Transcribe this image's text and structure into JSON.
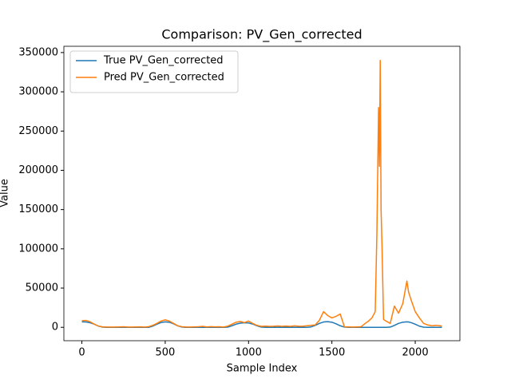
{
  "chart_data": {
    "type": "line",
    "title": "Comparison: PV_Gen_corrected",
    "xlabel": "Sample Index",
    "ylabel": "Value",
    "x": [
      0,
      25,
      50,
      75,
      100,
      125,
      150,
      175,
      200,
      225,
      250,
      275,
      300,
      325,
      350,
      375,
      400,
      425,
      450,
      475,
      500,
      525,
      550,
      575,
      600,
      625,
      650,
      675,
      700,
      725,
      750,
      775,
      800,
      825,
      850,
      875,
      900,
      925,
      950,
      975,
      1000,
      1025,
      1050,
      1075,
      1100,
      1125,
      1150,
      1175,
      1200,
      1225,
      1250,
      1275,
      1300,
      1325,
      1350,
      1375,
      1400,
      1425,
      1450,
      1475,
      1500,
      1525,
      1550,
      1575,
      1600,
      1625,
      1650,
      1675,
      1700,
      1720,
      1740,
      1760,
      1770,
      1775,
      1780,
      1785,
      1790,
      1795,
      1800,
      1810,
      1825,
      1850,
      1875,
      1900,
      1925,
      1950,
      1960,
      1975,
      2000,
      2025,
      2050,
      2075,
      2100,
      2125,
      2150,
      2160
    ],
    "series": [
      {
        "name": "True PV_Gen_corrected",
        "color": "#1f77b4",
        "values": [
          7000,
          6800,
          5800,
          4000,
          1500,
          200,
          0,
          0,
          0,
          0,
          0,
          0,
          0,
          0,
          0,
          0,
          0,
          1500,
          4000,
          6200,
          7000,
          6500,
          4500,
          2000,
          300,
          0,
          0,
          0,
          0,
          0,
          0,
          0,
          0,
          0,
          0,
          200,
          2000,
          4000,
          5300,
          5800,
          5500,
          4200,
          2000,
          300,
          0,
          0,
          0,
          0,
          0,
          0,
          0,
          0,
          0,
          0,
          0,
          500,
          2500,
          5000,
          6800,
          7200,
          6500,
          4500,
          2000,
          300,
          0,
          0,
          0,
          0,
          0,
          0,
          0,
          0,
          0,
          0,
          0,
          0,
          0,
          0,
          0,
          0,
          0,
          300,
          2500,
          5000,
          6500,
          7000,
          6800,
          6000,
          4000,
          1500,
          200,
          0,
          0,
          0,
          0,
          0
        ]
      },
      {
        "name": "Pred PV_Gen_corrected",
        "color": "#ff7f0e",
        "values": [
          8500,
          8800,
          7000,
          4000,
          1500,
          600,
          300,
          400,
          300,
          500,
          700,
          400,
          300,
          500,
          600,
          400,
          800,
          2500,
          5000,
          8000,
          9500,
          8000,
          5000,
          2000,
          800,
          500,
          400,
          600,
          700,
          1200,
          500,
          900,
          600,
          800,
          400,
          1500,
          4000,
          6500,
          7500,
          6000,
          8000,
          5000,
          2500,
          1200,
          1500,
          1200,
          1400,
          1800,
          1300,
          1600,
          1200,
          1900,
          1500,
          1400,
          2000,
          2500,
          3000,
          9000,
          20000,
          15000,
          12000,
          14000,
          17000,
          800,
          500,
          300,
          500,
          800,
          5000,
          8000,
          12000,
          20000,
          120000,
          200000,
          280000,
          205000,
          340000,
          150000,
          110000,
          10000,
          8000,
          5000,
          27000,
          18000,
          30000,
          59000,
          45000,
          35000,
          20000,
          12000,
          5000,
          3000,
          2000,
          2500,
          2000,
          1500
        ]
      }
    ],
    "xlim": [
      -108,
      2268
    ],
    "ylim": [
      -17050,
      358000
    ],
    "xticks": [
      0,
      500,
      1000,
      1500,
      2000
    ],
    "yticks": [
      0,
      50000,
      100000,
      150000,
      200000,
      250000,
      300000,
      350000
    ],
    "legend": "upper left"
  }
}
